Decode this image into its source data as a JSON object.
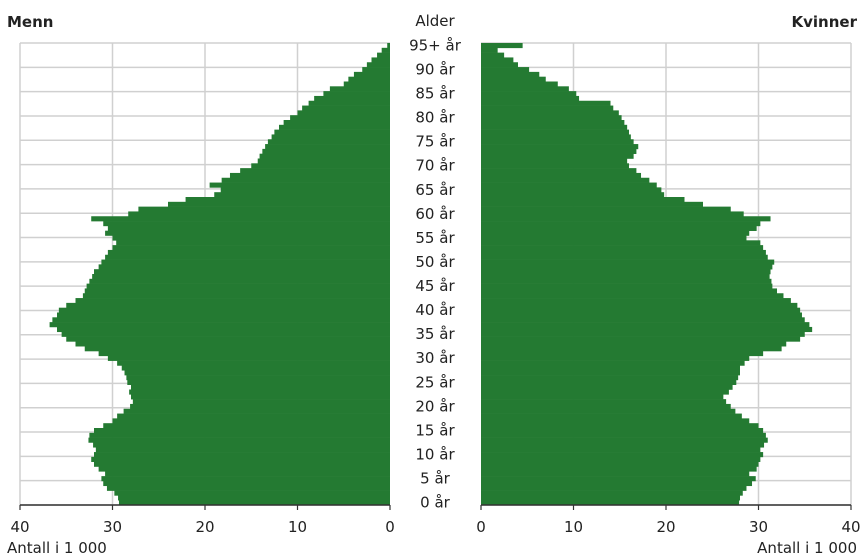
{
  "chart_data": {
    "type": "bar",
    "orientation": "horizontal",
    "layout": "population-pyramid",
    "colors": {
      "bar": "#247a32",
      "grid": "#d0d0d0",
      "axis": "#333333"
    },
    "left": {
      "title": "Menn",
      "xlabel": "Antall i 1 000",
      "xlim": [
        0,
        40
      ],
      "ticks": [
        "0",
        "10",
        "20",
        "30",
        "40"
      ]
    },
    "right": {
      "title": "Kvinner",
      "xlabel": "Antall i 1 000",
      "xlim": [
        0,
        40
      ],
      "ticks": [
        "0",
        "10",
        "20",
        "30",
        "40"
      ]
    },
    "center": {
      "title": "Alder",
      "age_labels": [
        "0 år",
        "5 år",
        "10 år",
        "15 år",
        "20 år",
        "25 år",
        "30 år",
        "35 år",
        "40 år",
        "45 år",
        "50 år",
        "55 år",
        "60 år",
        "65 år",
        "70 år",
        "75 år",
        "80 år",
        "85 år",
        "90 år",
        "95+ år"
      ],
      "label_ages": [
        0,
        5,
        10,
        15,
        20,
        25,
        30,
        35,
        40,
        45,
        50,
        55,
        60,
        65,
        70,
        75,
        80,
        85,
        90,
        95
      ]
    },
    "ages": [
      0,
      1,
      2,
      3,
      4,
      5,
      6,
      7,
      8,
      9,
      10,
      11,
      12,
      13,
      14,
      15,
      16,
      17,
      18,
      19,
      20,
      21,
      22,
      23,
      24,
      25,
      26,
      27,
      28,
      29,
      30,
      31,
      32,
      33,
      34,
      35,
      36,
      37,
      38,
      39,
      40,
      41,
      42,
      43,
      44,
      45,
      46,
      47,
      48,
      49,
      50,
      51,
      52,
      53,
      54,
      55,
      56,
      57,
      58,
      59,
      60,
      61,
      62,
      63,
      64,
      65,
      66,
      67,
      68,
      69,
      70,
      71,
      72,
      73,
      74,
      75,
      76,
      77,
      78,
      79,
      80,
      81,
      82,
      83,
      84,
      85,
      86,
      87,
      88,
      89,
      90,
      91,
      92,
      93,
      94,
      95
    ],
    "series": [
      {
        "name": "Menn",
        "values": [
          29.3,
          29.4,
          29.8,
          30.6,
          31.0,
          31.2,
          30.8,
          31.5,
          32.0,
          32.3,
          32.0,
          31.8,
          32.1,
          32.6,
          32.5,
          32.0,
          31.0,
          30.0,
          29.5,
          28.8,
          28.1,
          27.8,
          28.0,
          28.2,
          28.0,
          28.4,
          28.5,
          28.7,
          29.0,
          29.5,
          30.5,
          31.5,
          33.0,
          34.0,
          35.0,
          35.5,
          36.0,
          36.8,
          36.5,
          36.0,
          35.8,
          35.0,
          34.0,
          33.2,
          33.0,
          32.8,
          32.5,
          32.2,
          32.0,
          31.5,
          31.2,
          30.8,
          30.5,
          30.0,
          29.6,
          30.0,
          30.8,
          30.5,
          31.0,
          32.3,
          28.3,
          27.2,
          24.0,
          22.1,
          19.0,
          18.3,
          19.5,
          18.2,
          17.3,
          16.2,
          15.0,
          14.3,
          14.1,
          13.8,
          13.5,
          13.2,
          12.8,
          12.5,
          12.0,
          11.5,
          10.8,
          10.0,
          9.5,
          8.8,
          8.2,
          7.2,
          6.5,
          5.0,
          4.5,
          3.9,
          3.0,
          2.5,
          2.0,
          1.4,
          0.9,
          0.3
        ]
      },
      {
        "name": "Kvinner",
        "values": [
          27.9,
          28.0,
          28.3,
          28.7,
          29.3,
          29.7,
          29.0,
          29.8,
          30.0,
          30.2,
          30.5,
          30.2,
          30.6,
          31.0,
          30.8,
          30.5,
          30.0,
          29.0,
          28.2,
          27.5,
          27.0,
          26.5,
          26.2,
          26.8,
          27.2,
          27.6,
          27.8,
          28.0,
          28.0,
          28.5,
          29.0,
          30.5,
          32.5,
          33.0,
          34.5,
          35.0,
          35.8,
          35.5,
          35.0,
          34.7,
          34.5,
          34.2,
          33.5,
          32.7,
          32.0,
          31.5,
          31.4,
          31.2,
          31.3,
          31.5,
          31.7,
          31.0,
          30.8,
          30.5,
          30.2,
          28.7,
          29.0,
          29.8,
          30.2,
          31.3,
          28.4,
          27.0,
          24.0,
          22.0,
          19.8,
          19.5,
          19.0,
          18.2,
          17.3,
          16.8,
          16.0,
          15.8,
          16.5,
          16.8,
          17.0,
          16.5,
          16.2,
          16.0,
          15.8,
          15.5,
          15.2,
          14.9,
          14.3,
          14.0,
          10.6,
          10.3,
          9.5,
          8.3,
          7.0,
          6.3,
          5.2,
          4.0,
          3.5,
          2.5,
          1.8,
          4.5
        ]
      }
    ]
  }
}
